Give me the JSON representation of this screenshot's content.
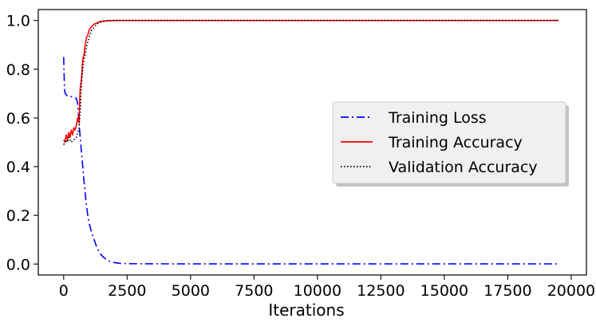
{
  "chart_data": {
    "type": "line",
    "title": "",
    "xlabel": "Iterations",
    "ylabel": "",
    "xlim": [
      -1000,
      20600
    ],
    "ylim": [
      -0.045,
      1.045
    ],
    "xticks": [
      0,
      2500,
      5000,
      7500,
      10000,
      12500,
      15000,
      17500,
      20000
    ],
    "xtick_labels": [
      "0",
      "2500",
      "5000",
      "7500",
      "10000",
      "12500",
      "15000",
      "17500",
      "20000"
    ],
    "yticks": [
      0.0,
      0.2,
      0.4,
      0.6,
      0.8,
      1.0
    ],
    "ytick_labels": [
      "0.0",
      "0.2",
      "0.4",
      "0.6",
      "0.8",
      "1.0"
    ],
    "grid": false,
    "legend": "center-right",
    "series": [
      {
        "name": "Training Loss",
        "color": "#0000ff",
        "style": "dashdot",
        "x": [
          0,
          30,
          60,
          100,
          150,
          200,
          300,
          400,
          500,
          550,
          600,
          650,
          700,
          750,
          800,
          850,
          900,
          950,
          1000,
          1100,
          1200,
          1300,
          1400,
          1500,
          1600,
          1700,
          1800,
          2000,
          2200,
          2500,
          3000,
          4000,
          6000,
          10000,
          15000,
          19500
        ],
        "values": [
          0.85,
          0.72,
          0.7,
          0.695,
          0.69,
          0.69,
          0.688,
          0.685,
          0.68,
          0.66,
          0.59,
          0.52,
          0.46,
          0.4,
          0.34,
          0.29,
          0.24,
          0.2,
          0.17,
          0.13,
          0.1,
          0.07,
          0.05,
          0.035,
          0.025,
          0.018,
          0.012,
          0.006,
          0.003,
          0.0015,
          0.001,
          0.0008,
          0.0006,
          0.0005,
          0.0005,
          0.0005
        ]
      },
      {
        "name": "Training Accuracy",
        "color": "#ff0000",
        "style": "solid",
        "x": [
          0,
          50,
          100,
          150,
          200,
          250,
          300,
          350,
          400,
          450,
          500,
          550,
          600,
          650,
          700,
          750,
          800,
          850,
          900,
          950,
          1000,
          1100,
          1200,
          1300,
          1400,
          1500,
          1700,
          2000,
          3000,
          6000,
          10000,
          15000,
          19500
        ],
        "values": [
          0.51,
          0.5,
          0.53,
          0.51,
          0.54,
          0.52,
          0.55,
          0.53,
          0.56,
          0.55,
          0.57,
          0.6,
          0.58,
          0.72,
          0.76,
          0.84,
          0.86,
          0.9,
          0.93,
          0.94,
          0.96,
          0.975,
          0.985,
          0.99,
          0.995,
          0.997,
          0.999,
          1.0,
          1.0,
          1.0,
          1.0,
          1.0,
          1.0
        ]
      },
      {
        "name": "Validation Accuracy",
        "color": "#000000",
        "style": "dotted",
        "x": [
          0,
          50,
          100,
          150,
          200,
          300,
          400,
          500,
          550,
          600,
          650,
          700,
          750,
          800,
          850,
          900,
          950,
          1000,
          1100,
          1200,
          1300,
          1400,
          1500,
          1700,
          2000,
          3000,
          6000,
          10000,
          15000,
          19500
        ],
        "values": [
          0.49,
          0.5,
          0.51,
          0.5,
          0.52,
          0.5,
          0.51,
          0.52,
          0.54,
          0.55,
          0.62,
          0.74,
          0.8,
          0.84,
          0.86,
          0.89,
          0.91,
          0.93,
          0.96,
          0.97,
          0.985,
          0.99,
          0.995,
          0.999,
          1.0,
          1.0,
          1.0,
          1.0,
          1.0,
          1.0
        ]
      }
    ]
  }
}
